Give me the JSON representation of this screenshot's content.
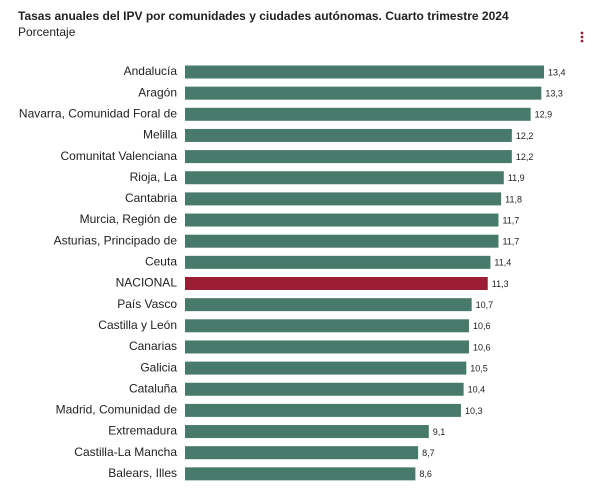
{
  "chart_data": {
    "type": "hbar",
    "title": "Tasas anuales del IPV por comunidades y ciudades autónomas. Cuarto trimestre 2024",
    "subtitle": "Porcentaje",
    "categories": [
      "Andalucía",
      "Aragón",
      "Navarra, Comunidad Foral de",
      "Melilla",
      "Comunitat Valenciana",
      "Rioja, La",
      "Cantabria",
      "Murcia, Región de",
      "Asturias, Principado de",
      "Ceuta",
      "NACIONAL",
      "País Vasco",
      "Castilla y León",
      "Canarias",
      "Galicia",
      "Cataluña",
      "Madrid, Comunidad de",
      "Extremadura",
      "Castilla-La Mancha",
      "Balears, Illes"
    ],
    "values": [
      13.4,
      13.3,
      12.9,
      12.2,
      12.2,
      11.9,
      11.8,
      11.7,
      11.7,
      11.4,
      11.3,
      10.7,
      10.6,
      10.6,
      10.5,
      10.4,
      10.3,
      9.1,
      8.7,
      8.6
    ],
    "value_labels": [
      "13,4",
      "13,3",
      "12,9",
      "12,2",
      "12,2",
      "11,9",
      "11,8",
      "11,7",
      "11,7",
      "11,4",
      "11,3",
      "10,7",
      "10,6",
      "10,6",
      "10,5",
      "10,4",
      "10,3",
      "9,1",
      "8,7",
      "8,6"
    ],
    "colors": [
      "#487a6c",
      "#487a6c",
      "#487a6c",
      "#487a6c",
      "#487a6c",
      "#487a6c",
      "#487a6c",
      "#487a6c",
      "#487a6c",
      "#487a6c",
      "#9b1c35",
      "#487a6c",
      "#487a6c",
      "#487a6c",
      "#487a6c",
      "#487a6c",
      "#487a6c",
      "#487a6c",
      "#487a6c",
      "#487a6c"
    ]
  }
}
